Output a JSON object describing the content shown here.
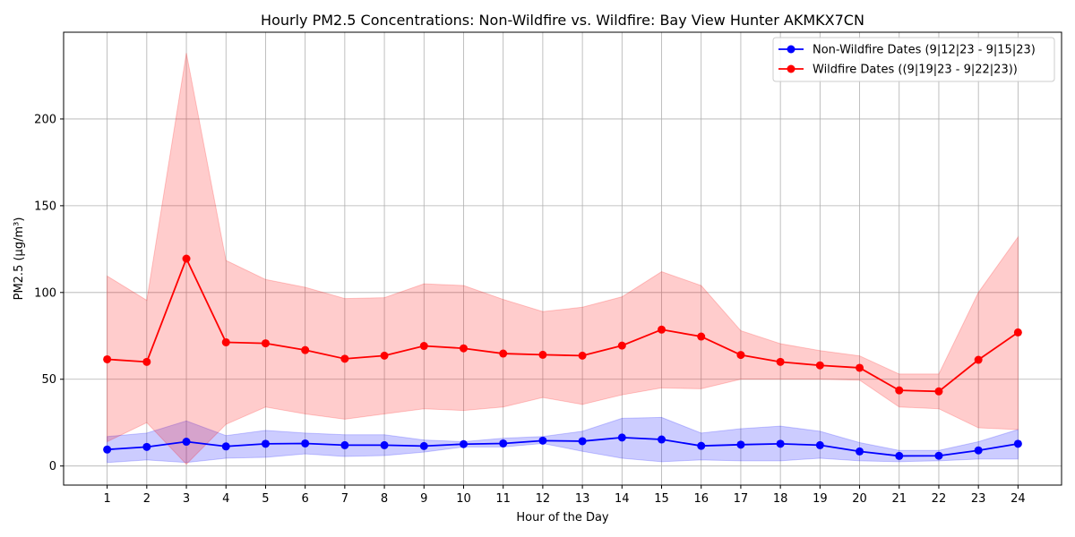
{
  "chart_data": {
    "type": "line",
    "title": "Hourly PM2.5 Concentrations: Non-Wildfire vs. Wildfire: Bay View Hunter AKMKX7CN",
    "xlabel": "Hour of the Day",
    "ylabel": "PM2.5 (µg/m³)",
    "x": [
      1,
      2,
      3,
      4,
      5,
      6,
      7,
      8,
      9,
      10,
      11,
      12,
      13,
      14,
      15,
      16,
      17,
      18,
      19,
      20,
      21,
      22,
      23,
      24
    ],
    "xlim": [
      -0.1,
      25.1
    ],
    "ylim": [
      -11,
      250
    ],
    "yticks": [
      0,
      50,
      100,
      150,
      200
    ],
    "grid": true,
    "legend_position": "top-right",
    "series": [
      {
        "name": "Non-Wildfire Dates (9|12|23 - 9|15|23)",
        "color": "#0000ff",
        "band_color": "#0000ff",
        "values": [
          9.5,
          11,
          14,
          11.3,
          12.8,
          13,
          12,
          12,
          11.5,
          12.6,
          13,
          14.6,
          14.3,
          16.4,
          15.3,
          11.6,
          12.3,
          12.8,
          12,
          8.4,
          5.8,
          5.9,
          9,
          12.8
        ],
        "lower": [
          2,
          3.5,
          2,
          4.5,
          5,
          7,
          5.5,
          6,
          8,
          11,
          11,
          13,
          8.5,
          4.5,
          2.5,
          3.5,
          3,
          3,
          4.5,
          3,
          2.5,
          3,
          4,
          4
        ],
        "upper": [
          17,
          19,
          26,
          17.5,
          20.5,
          19,
          18,
          18,
          15,
          14,
          16,
          17,
          20,
          27.5,
          28,
          19,
          21.5,
          23,
          20,
          13.5,
          9,
          9,
          14,
          21
        ]
      },
      {
        "name": "Wildfire Dates ((9|19|23 - 9|22|23))",
        "color": "#ff0000",
        "band_color": "#ff0000",
        "values": [
          61.5,
          60,
          119.5,
          71.3,
          70.7,
          66.8,
          61.8,
          63.6,
          69.2,
          67.8,
          64.8,
          64.1,
          63.6,
          69.4,
          78.6,
          74.6,
          64,
          60,
          58,
          56.6,
          43.6,
          43,
          61.2,
          77
        ],
        "lower": [
          14,
          25,
          1,
          24,
          34,
          30,
          27,
          30,
          33,
          32,
          34,
          39.5,
          35.5,
          41,
          45,
          44.5,
          50,
          50,
          50,
          49.5,
          34,
          33,
          22,
          21
        ],
        "upper": [
          109.5,
          95.5,
          238,
          118.5,
          107.5,
          103,
          96.5,
          97,
          105,
          104,
          96,
          89,
          91.5,
          97.5,
          112,
          104,
          78,
          70.5,
          66.5,
          63.5,
          53,
          53,
          100,
          132
        ]
      }
    ]
  }
}
